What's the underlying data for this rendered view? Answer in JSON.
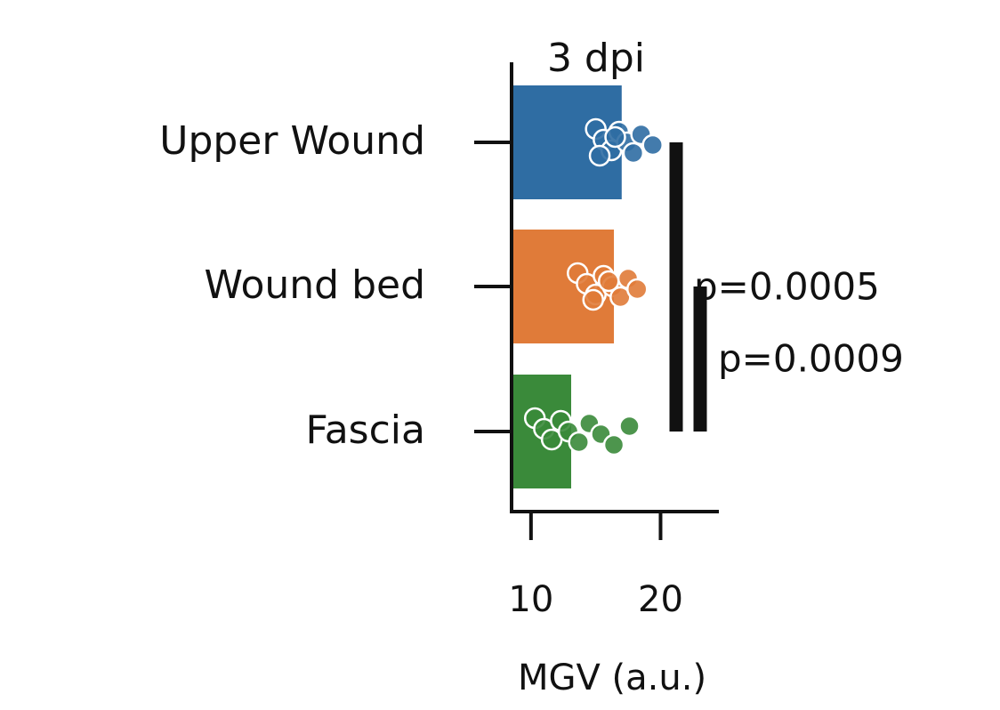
{
  "chart_data": {
    "type": "bar",
    "orientation": "horizontal",
    "title": "3 dpi",
    "xlabel": "MGV (a.u.)",
    "ylabel": "",
    "xlim": [
      8.5,
      24.5
    ],
    "xticks": [
      10,
      20
    ],
    "categories": [
      "Upper Wound",
      "Wound bed",
      "Fascia"
    ],
    "values": [
      17.0,
      16.4,
      13.1
    ],
    "colors": [
      "#2f6da3",
      "#e07b39",
      "#3a8a3a"
    ],
    "points": [
      [
        15.0,
        15.6,
        16.2,
        16.8,
        17.4,
        17.9,
        18.5,
        19.4,
        15.3,
        16.5
      ],
      [
        13.6,
        14.3,
        15.0,
        15.6,
        16.3,
        16.9,
        17.5,
        18.2,
        14.8,
        16.0
      ],
      [
        10.3,
        11.0,
        11.6,
        12.3,
        12.9,
        13.7,
        14.5,
        15.4,
        16.4,
        17.6
      ]
    ],
    "comparisons": [
      {
        "from": "Upper Wound",
        "to": "Fascia",
        "label": "p=0.0005"
      },
      {
        "from": "Wound bed",
        "to": "Fascia",
        "label": "p=0.0009"
      }
    ],
    "grid": false,
    "legend": "none"
  }
}
